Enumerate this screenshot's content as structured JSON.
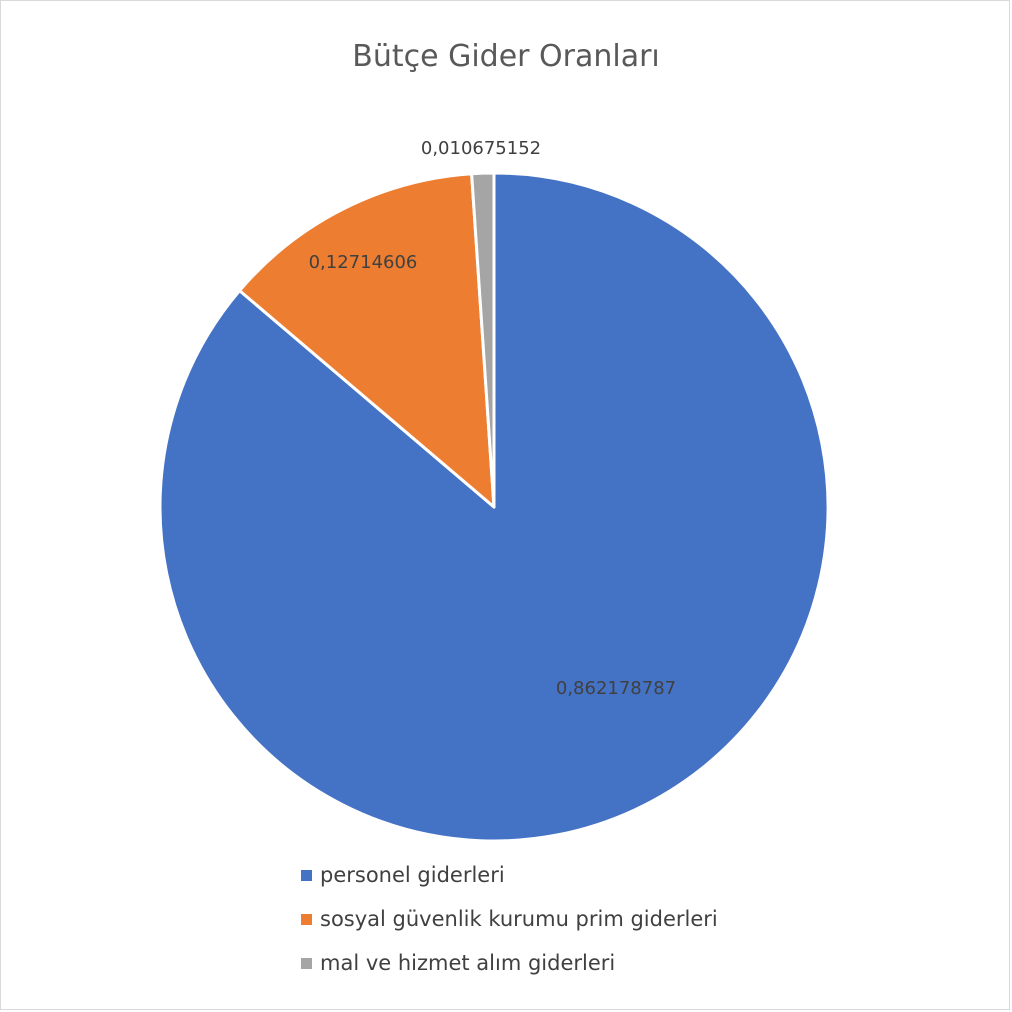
{
  "chart_data": {
    "type": "pie",
    "title": "Bütçe Gider Oranları",
    "categories": [
      "personel giderleri",
      "sosyal güvenlik kurumu prim giderleri",
      "mal ve hizmet alım giderleri"
    ],
    "values": [
      0.862178787,
      0.12714606,
      0.010675152
    ],
    "data_labels": [
      "0,862178787",
      "0,12714606",
      "0,010675152"
    ],
    "colors": [
      "#4472C4",
      "#ED7D31",
      "#A5A5A5"
    ],
    "start_angle": "12 o'clock",
    "direction": "clockwise",
    "legend_position": "bottom-left"
  }
}
